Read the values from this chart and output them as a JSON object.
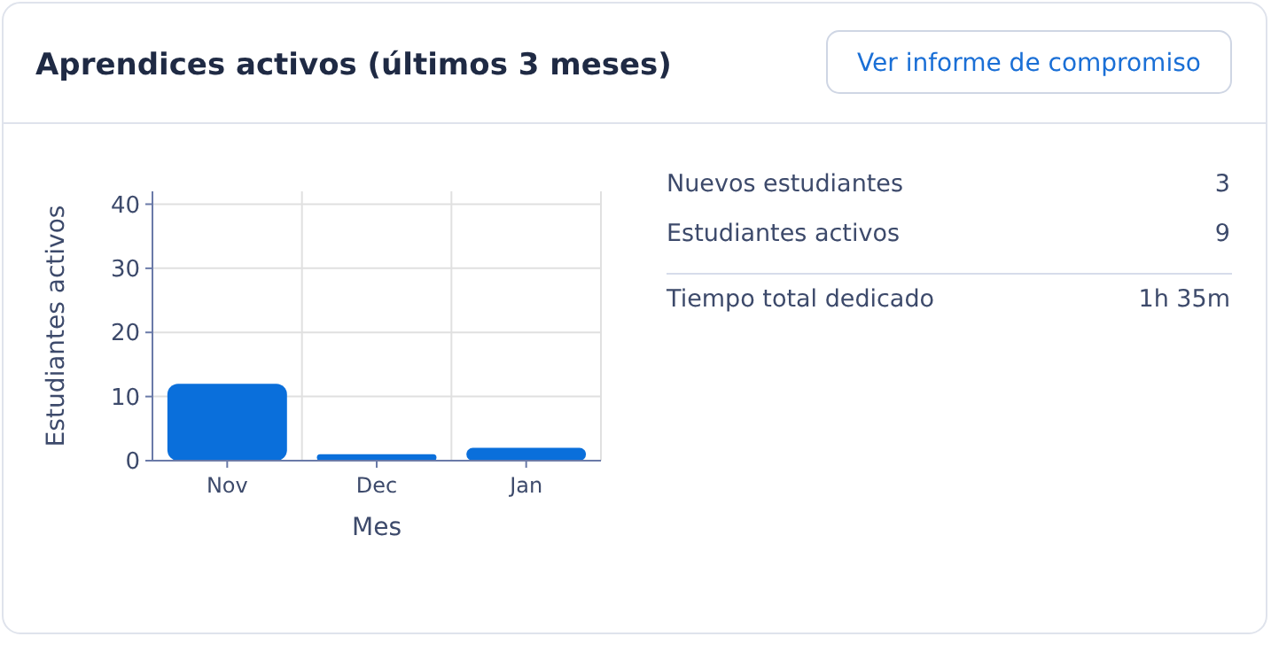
{
  "chart_data": {
    "type": "bar",
    "title": "Aprendices activos (últimos 3 meses)",
    "xlabel": "Mes",
    "ylabel": "Estudiantes activos",
    "categories": [
      "Nov",
      "Dec",
      "Jan"
    ],
    "values": [
      12,
      1,
      2
    ],
    "color": "#0a6fdb",
    "ylim": [
      0,
      42
    ],
    "yticks": [
      0,
      10,
      20,
      30,
      40
    ],
    "grid": true,
    "annotations": [
      "Ver informe de compromiso",
      "Nuevos estudiantes",
      "3",
      "Estudiantes activos",
      "9",
      "Tiempo total dedicado",
      "1h 35m"
    ]
  }
}
